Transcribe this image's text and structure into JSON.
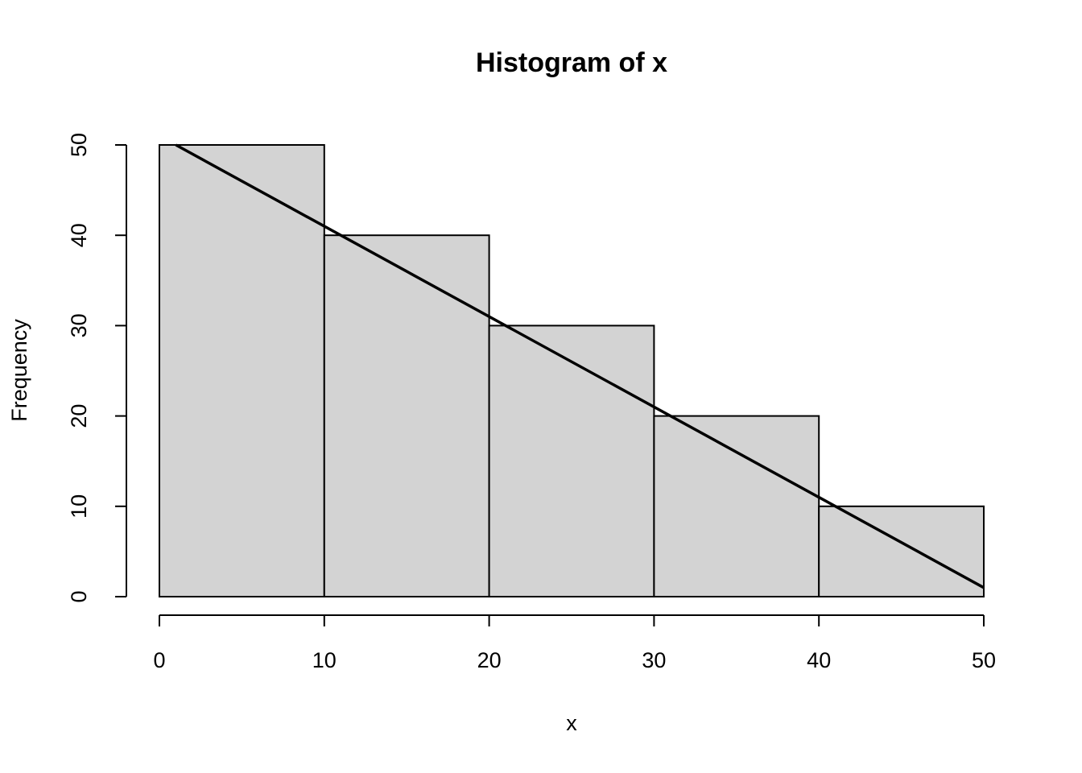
{
  "chart_data": {
    "type": "histogram",
    "title": "Histogram of x",
    "xlabel": "x",
    "ylabel": "Frequency",
    "bins": [
      0,
      10,
      20,
      30,
      40,
      50
    ],
    "counts": [
      50,
      40,
      30,
      20,
      10
    ],
    "color": "#d3d3d3",
    "overlay": {
      "type": "line",
      "x": [
        1,
        50
      ],
      "values": [
        50,
        1
      ],
      "color": "#000000"
    },
    "xlim": [
      0,
      50
    ],
    "xticks": [
      0,
      10,
      20,
      30,
      40,
      50
    ],
    "ylim": [
      0,
      50
    ],
    "yticks": [
      0,
      10,
      20,
      30,
      40,
      50
    ]
  }
}
